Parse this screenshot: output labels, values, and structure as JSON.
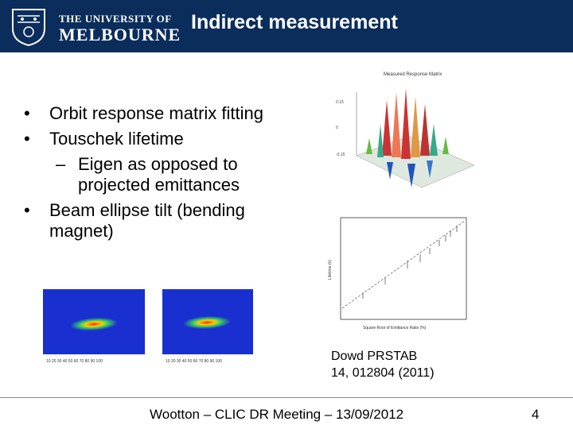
{
  "header": {
    "logo_line1": "THE UNIVERSITY OF",
    "logo_line2": "MELBOURNE",
    "title": "Indirect measurement"
  },
  "bullets": {
    "b1": "Orbit response matrix fitting",
    "b2": "Touschek lifetime",
    "b2_sub": "Eigen as opposed to projected emittances",
    "b3": "Beam ellipse tilt (bending magnet)"
  },
  "figures": {
    "top_right_title": "Measured Response Matrix",
    "bottom_right_ylabel": "Lifetime (h)",
    "bottom_right_xlabel": "Square Root of Emittance Ratio (%)",
    "bottom_left_x_ticks": [
      "10",
      "20",
      "30",
      "40",
      "50",
      "60",
      "70",
      "80",
      "90",
      "100"
    ]
  },
  "caption": {
    "line1": "Dowd PRSTAB",
    "line2": "14, 012804 (2011)"
  },
  "footer": {
    "text": "Wootton – CLIC DR Meeting – 13/09/2012",
    "page": "4"
  },
  "colors": {
    "header_bg": "#0a2d5c",
    "beam_bg": "#1a2fd0"
  }
}
